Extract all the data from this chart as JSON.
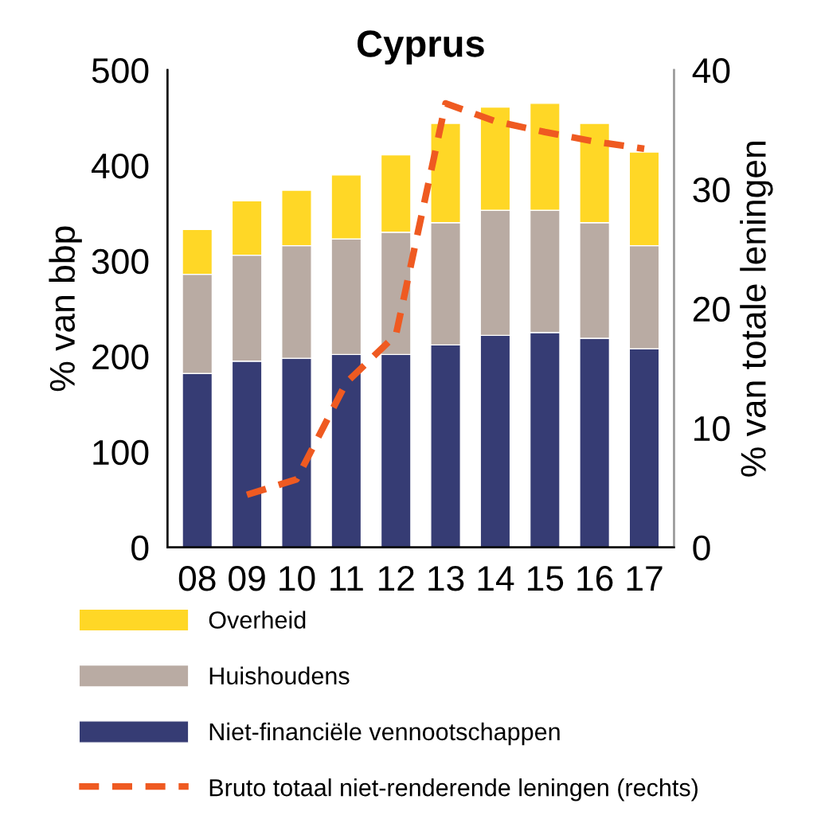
{
  "chart_data": {
    "type": "bar",
    "title": "Cyprus",
    "ylabel": "% van bbp",
    "y2label": "% van totale leningen",
    "stacked": true,
    "categories": [
      "08",
      "09",
      "10",
      "11",
      "12",
      "13",
      "14",
      "15",
      "16",
      "17"
    ],
    "series": [
      {
        "name": "Niet-financiële vennootschappen",
        "color": "#363c74",
        "values": [
          182,
          195,
          198,
          202,
          202,
          212,
          222,
          225,
          219,
          208
        ]
      },
      {
        "name": "Huishoudens",
        "color": "#b9aba3",
        "values": [
          104,
          111,
          118,
          121,
          128,
          128,
          131,
          128,
          121,
          108
        ]
      },
      {
        "name": "Overheid",
        "color": "#ffd726",
        "values": [
          47,
          57,
          58,
          67,
          81,
          104,
          108,
          112,
          104,
          98
        ]
      },
      {
        "name": "Bruto totaal niet-renderende leningen (rechts)",
        "type": "line",
        "axis": "y2",
        "color": "#ef5a21",
        "line_style": "dashed",
        "values": [
          null,
          4.4,
          5.7,
          13.8,
          17.8,
          37.2,
          35.7,
          34.8,
          34.0,
          33.4
        ]
      }
    ],
    "ylim": [
      0,
      500
    ],
    "yticks": [
      0,
      100,
      200,
      300,
      400,
      500
    ],
    "y2lim": [
      0,
      40
    ],
    "y2ticks": [
      0,
      10,
      20,
      30,
      40
    ],
    "legend": "bottom",
    "grid": false
  }
}
